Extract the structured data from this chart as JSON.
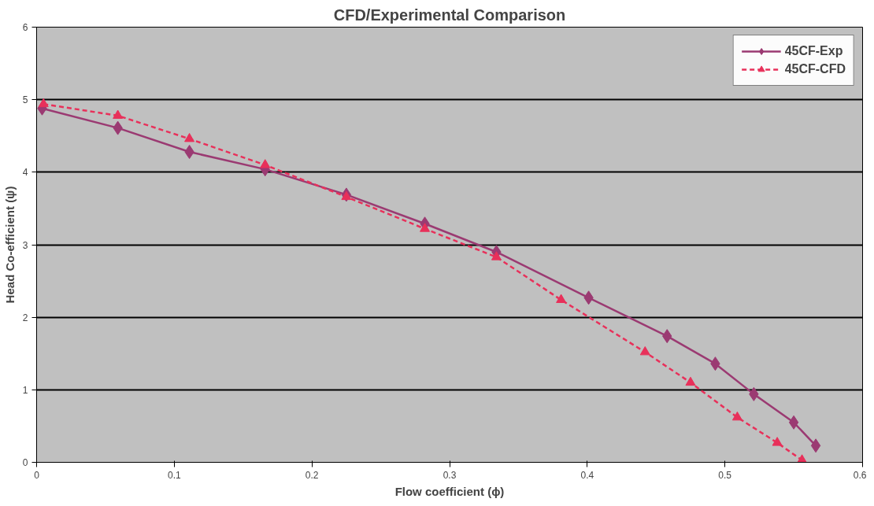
{
  "chart_data": {
    "type": "line",
    "title": "CFD/Experimental Comparison",
    "xlabel": "Flow coefficient (ϕ)",
    "ylabel": "Head Co-efficient (ψ)",
    "xlim": [
      0,
      0.6
    ],
    "xticks": [
      0,
      0.1,
      0.2,
      0.3,
      0.4,
      0.5,
      0.6
    ],
    "ylim": [
      0,
      6
    ],
    "yticks": [
      0,
      1,
      2,
      3,
      4,
      5,
      6
    ],
    "grid": "y",
    "legend": "top right",
    "series": [
      {
        "name": "45CF-Exp",
        "color": "#9b3a72",
        "marker": "diamond",
        "line_style": "solid",
        "x": [
          0.004,
          0.059,
          0.111,
          0.166,
          0.225,
          0.282,
          0.334,
          0.401,
          0.458,
          0.493,
          0.521,
          0.55,
          0.566
        ],
        "values": [
          4.88,
          4.61,
          4.28,
          4.04,
          3.69,
          3.29,
          2.9,
          2.27,
          1.74,
          1.36,
          0.94,
          0.55,
          0.23
        ]
      },
      {
        "name": "45CF-CFD",
        "color": "#e8305a",
        "marker": "triangle",
        "line_style": "dashed",
        "x": [
          0.005,
          0.059,
          0.111,
          0.166,
          0.225,
          0.282,
          0.334,
          0.381,
          0.442,
          0.475,
          0.509,
          0.538,
          0.556
        ],
        "values": [
          4.94,
          4.78,
          4.46,
          4.1,
          3.66,
          3.22,
          2.83,
          2.24,
          1.52,
          1.1,
          0.62,
          0.27,
          0.03
        ]
      }
    ]
  }
}
